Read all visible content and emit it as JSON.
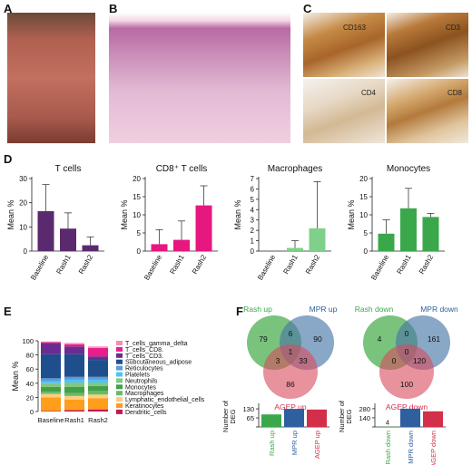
{
  "panels": {
    "A": "A",
    "B": "B",
    "C": "C",
    "D": "D",
    "E": "E",
    "F": "F"
  },
  "ihc_labels": [
    "CD163",
    "CD3",
    "CD4",
    "CD8"
  ],
  "colors": {
    "tcell": "#5b2a6e",
    "cd8": "#e6177f",
    "macro": "#7fd08a",
    "mono": "#3aa84a",
    "venn_green": "#4caf50",
    "venn_blue": "#4a78a8",
    "venn_red": "#d94a5c"
  },
  "chart_data": [
    {
      "type": "bar",
      "title": "T cells",
      "ylabel": "Mean %",
      "categories": [
        "Baseline",
        "Rash1",
        "Rash2"
      ],
      "values": [
        16.5,
        9.3,
        2.4
      ],
      "errors": [
        11.0,
        6.5,
        3.5
      ],
      "ylim": [
        0,
        30
      ],
      "yticks": [
        0,
        10,
        20,
        30
      ]
    },
    {
      "type": "bar",
      "title": "CD8⁺ T cells",
      "ylabel": "Mean %",
      "categories": [
        "Baseline",
        "Rash1",
        "Rash2"
      ],
      "values": [
        1.9,
        3.1,
        12.6
      ],
      "errors": [
        4.0,
        5.2,
        5.4
      ],
      "ylim": [
        0,
        20
      ],
      "yticks": [
        0,
        5,
        10,
        15,
        20
      ]
    },
    {
      "type": "bar",
      "title": "Macrophages",
      "ylabel": "Mean %",
      "categories": [
        "Baseline",
        "Rash1",
        "Rash2"
      ],
      "values": [
        0.0,
        0.3,
        2.2
      ],
      "errors": [
        0.0,
        0.7,
        4.5
      ],
      "ylim": [
        0,
        7
      ],
      "yticks": [
        0,
        1,
        2,
        3,
        4,
        5,
        6,
        7
      ]
    },
    {
      "type": "bar",
      "title": "Monocytes",
      "ylabel": "Mean %",
      "categories": [
        "Baseline",
        "Rash1",
        "Rash2"
      ],
      "values": [
        4.8,
        11.8,
        9.4
      ],
      "errors": [
        3.8,
        5.5,
        1.0
      ],
      "ylim": [
        0,
        20
      ],
      "yticks": [
        0,
        5,
        10,
        15,
        20
      ]
    },
    {
      "type": "bar",
      "stacked": true,
      "ylabel": "Mean %",
      "categories": [
        "Baseline",
        "Rash1",
        "Rash2"
      ],
      "ylim": [
        0,
        100
      ],
      "yticks": [
        0,
        20,
        40,
        60,
        80,
        100
      ],
      "series": [
        {
          "name": "Dendritic_cells",
          "color": "#c2185b",
          "values": [
            1,
            2,
            3
          ]
        },
        {
          "name": "Keratinocytes",
          "color": "#ff9e1b",
          "values": [
            19,
            15,
            16
          ]
        },
        {
          "name": "Lymphatic_endothelial_cells",
          "color": "#ffcc80",
          "values": [
            5,
            5,
            5
          ]
        },
        {
          "name": "Macrophages",
          "color": "#66bb6a",
          "values": [
            3,
            4,
            5
          ]
        },
        {
          "name": "Monocytes",
          "color": "#43a047",
          "values": [
            7,
            9,
            7
          ]
        },
        {
          "name": "Neutrophils",
          "color": "#81c784",
          "values": [
            5,
            6,
            5
          ]
        },
        {
          "name": "Platelets",
          "color": "#4fc3f7",
          "values": [
            3,
            4,
            4
          ]
        },
        {
          "name": "Reticulocytes",
          "color": "#5c9bd6",
          "values": [
            4,
            4,
            4
          ]
        },
        {
          "name": "Subcutaneous_adipose",
          "color": "#1f4e8c",
          "values": [
            34,
            32,
            24
          ]
        },
        {
          "name": "T_cells_CD3.",
          "color": "#6a2c91",
          "values": [
            16,
            11,
            5
          ]
        },
        {
          "name": "T_cells_CD8.",
          "color": "#e91e8c",
          "values": [
            1,
            3,
            12
          ]
        },
        {
          "name": "T_cells_gamma_delta",
          "color": "#f48fb1",
          "values": [
            1,
            2,
            2
          ]
        }
      ]
    },
    {
      "type": "bar",
      "ylabel": "Number of DEG",
      "categories": [
        "Rash up",
        "MPR up",
        "AGEP up"
      ],
      "values": [
        90,
        130,
        125
      ],
      "yticks": [
        0,
        65,
        130
      ],
      "ylim": [
        0,
        150
      ],
      "colors": [
        "#3aa84a",
        "#2e5f9e",
        "#d32f4a"
      ]
    },
    {
      "type": "bar",
      "ylabel": "Number of DEG",
      "categories": [
        "Rash down",
        "MPR down",
        "AGEP down"
      ],
      "values": [
        4,
        280,
        240
      ],
      "yticks": [
        0,
        140,
        280
      ],
      "ylim": [
        0,
        320
      ],
      "data_labels": [
        "4",
        "",
        ""
      ],
      "colors": [
        "#3aa84a",
        "#2e5f9e",
        "#d32f4a"
      ]
    }
  ],
  "venn_up": {
    "labels": [
      "Rash up",
      "MPR up",
      "AGEP up"
    ],
    "counts": [
      "79",
      "6",
      "90",
      "3",
      "1",
      "33",
      "86"
    ]
  },
  "venn_down": {
    "labels": [
      "Rash down",
      "MPR down",
      "AGEP down"
    ],
    "counts": [
      "4",
      "0",
      "161",
      "0",
      "0",
      "120",
      "100"
    ]
  }
}
